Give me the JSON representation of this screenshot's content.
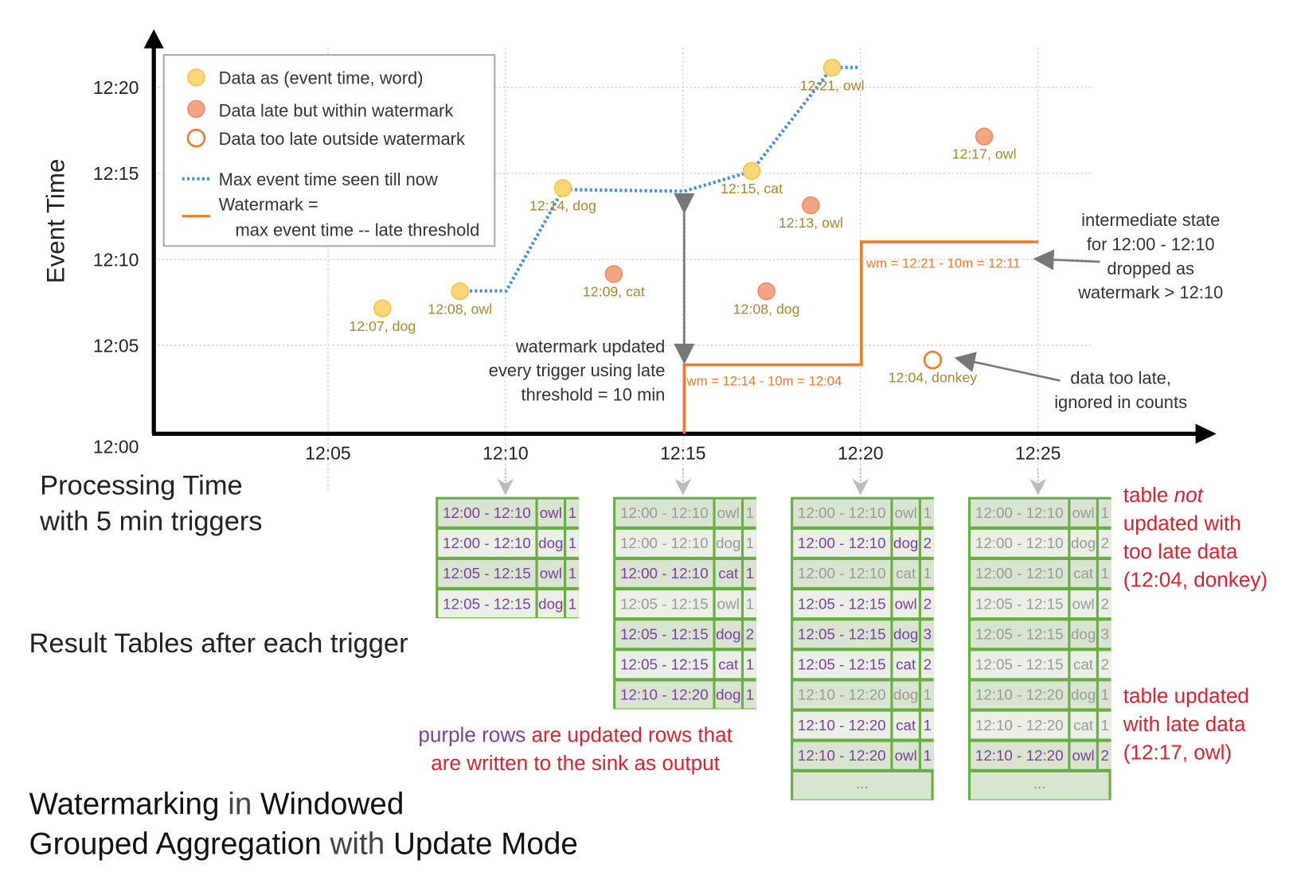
{
  "axes": {
    "y_title": "Event Time",
    "y_ticks": [
      "12:00",
      "12:05",
      "12:10",
      "12:15",
      "12:20"
    ],
    "x_ticks": [
      "12:05",
      "12:10",
      "12:15",
      "12:20",
      "12:25"
    ],
    "x_title": [
      "Processing Time",
      "with 5 min triggers"
    ]
  },
  "legend": {
    "items": [
      "Data as (event time, word)",
      "Data late but within watermark",
      "Data too late outside watermark",
      "Max event time seen till now"
    ],
    "watermark": [
      "Watermark =",
      "max event time -- late threshold"
    ]
  },
  "colors": {
    "on_time": "#fcd77a",
    "late": "#f4a582",
    "too_late": "#f07b2a",
    "max_line": "#4a90d9",
    "watermark": "#f07b2a",
    "updated_row": "#7b3fa0",
    "stale_row": "#999999",
    "table_border": "#6aad45",
    "note_red": "#d9232e"
  },
  "points": [
    {
      "kind": "on_time",
      "proc": "12:06:32",
      "event": "12:07",
      "label": "12:07, dog"
    },
    {
      "kind": "on_time",
      "proc": "12:08:43",
      "event": "12:08",
      "label": "12:08, owl"
    },
    {
      "kind": "on_time",
      "proc": "12:11:37",
      "event": "12:14",
      "label": "12:14, dog"
    },
    {
      "kind": "late",
      "proc": "12:13:03",
      "event": "12:09",
      "label": "12:09, cat"
    },
    {
      "kind": "on_time",
      "proc": "12:16:56",
      "event": "12:15",
      "label": "12:15, cat"
    },
    {
      "kind": "late",
      "proc": "12:17:21",
      "event": "12:08",
      "label": "12:08, dog"
    },
    {
      "kind": "late",
      "proc": "12:18:36",
      "event": "12:13",
      "label": "12:13, owl"
    },
    {
      "kind": "on_time",
      "proc": "12:19:12",
      "event": "12:21",
      "label": "12:21, owl"
    },
    {
      "kind": "too_late",
      "proc": "12:22:02",
      "event": "12:04",
      "label": "12:04, donkey"
    },
    {
      "kind": "late",
      "proc": "12:23:29",
      "event": "12:17",
      "label": "12:17, owl"
    }
  ],
  "watermarks": [
    "wm = 12:14 - 10m = 12:04",
    "wm = 12:21 - 10m = 12:11"
  ],
  "annotations": {
    "watermark_updated": [
      "watermark updated",
      "every trigger using late",
      "threshold = 10 min"
    ],
    "intermediate_state": [
      "intermediate state",
      "for 12:00 - 12:10",
      "dropped as",
      "watermark > 12:10"
    ],
    "too_late": [
      "data too late,",
      "ignored in counts"
    ]
  },
  "result_tables_label": "Result Tables after each trigger",
  "tables": [
    {
      "trigger": "12:10",
      "rows": [
        [
          "12:00 - 12:10",
          "owl",
          "1",
          true
        ],
        [
          "12:00 - 12:10",
          "dog",
          "1",
          true
        ],
        [
          "12:05 - 12:15",
          "owl",
          "1",
          true
        ],
        [
          "12:05 - 12:15",
          "dog",
          "1",
          true
        ]
      ],
      "ellipsis": false
    },
    {
      "trigger": "12:15",
      "rows": [
        [
          "12:00 - 12:10",
          "owl",
          "1",
          false
        ],
        [
          "12:00 - 12:10",
          "dog",
          "1",
          false
        ],
        [
          "12:00 - 12:10",
          "cat",
          "1",
          true
        ],
        [
          "12:05 - 12:15",
          "owl",
          "1",
          false
        ],
        [
          "12:05 - 12:15",
          "dog",
          "2",
          true
        ],
        [
          "12:05 - 12:15",
          "cat",
          "1",
          true
        ],
        [
          "12:10 - 12:20",
          "dog",
          "1",
          true
        ]
      ],
      "ellipsis": false
    },
    {
      "trigger": "12:20",
      "rows": [
        [
          "12:00 - 12:10",
          "owl",
          "1",
          false
        ],
        [
          "12:00 - 12:10",
          "dog",
          "2",
          true
        ],
        [
          "12:00 - 12:10",
          "cat",
          "1",
          false
        ],
        [
          "12:05 - 12:15",
          "owl",
          "2",
          true
        ],
        [
          "12:05 - 12:15",
          "dog",
          "3",
          true
        ],
        [
          "12:05 - 12:15",
          "cat",
          "2",
          true
        ],
        [
          "12:10 - 12:20",
          "dog",
          "1",
          false
        ],
        [
          "12:10 - 12:20",
          "cat",
          "1",
          true
        ],
        [
          "12:10 - 12:20",
          "owl",
          "1",
          true
        ]
      ],
      "ellipsis": true
    },
    {
      "trigger": "12:25",
      "rows": [
        [
          "12:00 - 12:10",
          "owl",
          "1",
          false
        ],
        [
          "12:00 - 12:10",
          "dog",
          "2",
          false
        ],
        [
          "12:00 - 12:10",
          "cat",
          "1",
          false
        ],
        [
          "12:05 - 12:15",
          "owl",
          "2",
          false
        ],
        [
          "12:05 - 12:15",
          "dog",
          "3",
          false
        ],
        [
          "12:05 - 12:15",
          "cat",
          "2",
          false
        ],
        [
          "12:10 - 12:20",
          "dog",
          "1",
          false
        ],
        [
          "12:10 - 12:20",
          "cat",
          "1",
          false
        ],
        [
          "12:10 - 12:20",
          "owl",
          "2",
          true
        ]
      ],
      "ellipsis": true
    }
  ],
  "ellipsis": "...",
  "purple_note": {
    "purple": "purple rows",
    "line1_rest": " are updated rows that",
    "line2": "are written to the sink as output"
  },
  "side_notes": {
    "not_updated": [
      "table ",
      "not",
      "updated with",
      "too late data",
      "(12:04, donkey)"
    ],
    "updated": [
      "table updated",
      "with late data",
      "(12:17, owl)"
    ]
  },
  "title": {
    "line1": [
      "Watermarking",
      " in ",
      "Windowed"
    ],
    "line2": [
      "Grouped Aggregation",
      " with ",
      "Update Mode"
    ]
  }
}
